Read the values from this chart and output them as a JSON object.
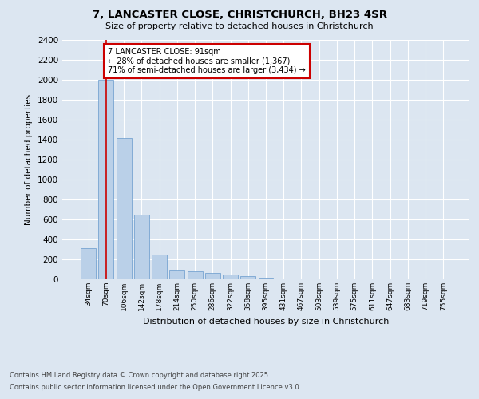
{
  "title_line1": "7, LANCASTER CLOSE, CHRISTCHURCH, BH23 4SR",
  "title_line2": "Size of property relative to detached houses in Christchurch",
  "xlabel": "Distribution of detached houses by size in Christchurch",
  "ylabel": "Number of detached properties",
  "categories": [
    "34sqm",
    "70sqm",
    "106sqm",
    "142sqm",
    "178sqm",
    "214sqm",
    "250sqm",
    "286sqm",
    "322sqm",
    "358sqm",
    "395sqm",
    "431sqm",
    "467sqm",
    "503sqm",
    "539sqm",
    "575sqm",
    "611sqm",
    "647sqm",
    "683sqm",
    "719sqm",
    "755sqm"
  ],
  "values": [
    310,
    2000,
    1420,
    650,
    250,
    100,
    80,
    65,
    50,
    30,
    15,
    8,
    5,
    3,
    2,
    1,
    1,
    0,
    0,
    0,
    0
  ],
  "bar_color": "#bad0e8",
  "bar_edgecolor": "#6699cc",
  "vline_x": 1.0,
  "vline_color": "#cc0000",
  "annotation_text": "7 LANCASTER CLOSE: 91sqm\n← 28% of detached houses are smaller (1,367)\n71% of semi-detached houses are larger (3,434) →",
  "annotation_box_color": "#ffffff",
  "annotation_box_edgecolor": "#cc0000",
  "ylim": [
    0,
    2400
  ],
  "yticks": [
    0,
    200,
    400,
    600,
    800,
    1000,
    1200,
    1400,
    1600,
    1800,
    2000,
    2200,
    2400
  ],
  "bg_color": "#dce6f1",
  "plot_bg_color": "#dce6f1",
  "grid_color": "#ffffff",
  "footer_line1": "Contains HM Land Registry data © Crown copyright and database right 2025.",
  "footer_line2": "Contains public sector information licensed under the Open Government Licence v3.0."
}
